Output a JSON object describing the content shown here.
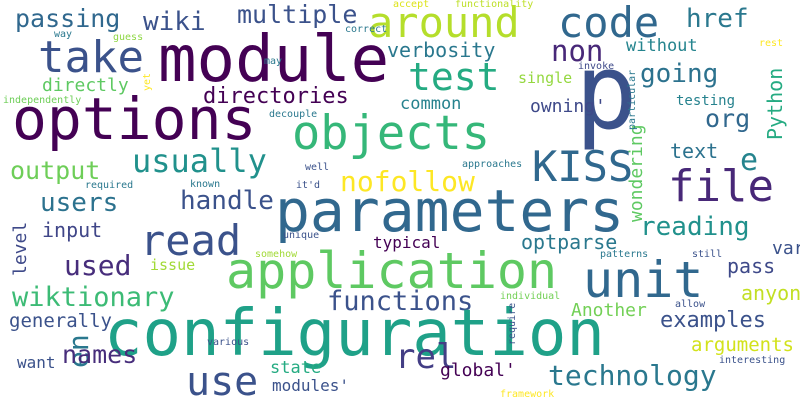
{
  "words": [
    {
      "text": "passing",
      "color": "#30688e"
    },
    {
      "text": "wiki",
      "color": "#3b528b"
    },
    {
      "text": "multiple",
      "color": "#3b528b"
    },
    {
      "text": "around",
      "color": "#b5de2b"
    },
    {
      "text": "code",
      "color": "#31688e"
    },
    {
      "text": "href",
      "color": "#2a788e"
    },
    {
      "text": "take",
      "color": "#3b528b"
    },
    {
      "text": "module",
      "color": "#440154"
    },
    {
      "text": "test",
      "color": "#25ab82"
    },
    {
      "text": "non",
      "color": "#482878"
    },
    {
      "text": "verbosity",
      "color": "#2a788e"
    },
    {
      "text": "going",
      "color": "#2c728e"
    },
    {
      "text": "without",
      "color": "#25848e"
    },
    {
      "text": "Python",
      "color": "#25ab82"
    },
    {
      "text": "p",
      "color": "#3b528b"
    },
    {
      "text": "directly",
      "color": "#5ec962"
    },
    {
      "text": "directories",
      "color": "#440154"
    },
    {
      "text": "single",
      "color": "#95d840"
    },
    {
      "text": "testing",
      "color": "#26828e"
    },
    {
      "text": "common",
      "color": "#26828e"
    },
    {
      "text": "owning'",
      "color": "#3e4989"
    },
    {
      "text": "org",
      "color": "#31688e"
    },
    {
      "text": "options",
      "color": "#440154"
    },
    {
      "text": "objects",
      "color": "#35b779"
    },
    {
      "text": "usually",
      "color": "#21918c"
    },
    {
      "text": "KISS",
      "color": "#30688e"
    },
    {
      "text": "e",
      "color": "#25848e"
    },
    {
      "text": "variables",
      "color": "#3b528b"
    },
    {
      "text": "output",
      "color": "#6ece58"
    },
    {
      "text": "nofollow",
      "color": "#fde725"
    },
    {
      "text": "file",
      "color": "#482878"
    },
    {
      "text": "text",
      "color": "#2c728e"
    },
    {
      "text": "wondering",
      "color": "#5ec962"
    },
    {
      "text": "users",
      "color": "#2c728e"
    },
    {
      "text": "handle",
      "color": "#3b528b"
    },
    {
      "text": "parameters",
      "color": "#31688e"
    },
    {
      "text": "reading",
      "color": "#21918c"
    },
    {
      "text": "input",
      "color": "#404688"
    },
    {
      "text": "read",
      "color": "#3b528b"
    },
    {
      "text": "typical",
      "color": "#440154"
    },
    {
      "text": "optparse",
      "color": "#2a788e"
    },
    {
      "text": "level",
      "color": "#3e4989"
    },
    {
      "text": "used",
      "color": "#472d7b"
    },
    {
      "text": "application",
      "color": "#5ec962"
    },
    {
      "text": "unit",
      "color": "#31688e"
    },
    {
      "text": "pass",
      "color": "#3e4989"
    },
    {
      "text": "issue",
      "color": "#a2da37"
    },
    {
      "text": "wiktionary",
      "color": "#3cbb75"
    },
    {
      "text": "functions",
      "color": "#3b528b"
    },
    {
      "text": "anyone",
      "color": "#c2df23"
    },
    {
      "text": "generally",
      "color": "#3b528b"
    },
    {
      "text": "en",
      "color": "#2a788e"
    },
    {
      "text": "Another",
      "color": "#73d056"
    },
    {
      "text": "configuration",
      "color": "#1fa188"
    },
    {
      "text": "examples",
      "color": "#3b528b"
    },
    {
      "text": "arguments",
      "color": "#d2e21b"
    },
    {
      "text": "names",
      "color": "#472d7b"
    },
    {
      "text": "use",
      "color": "#3b528b"
    },
    {
      "text": "state",
      "color": "#25ab82"
    },
    {
      "text": "rel",
      "color": "#433e85"
    },
    {
      "text": "global'",
      "color": "#440154"
    },
    {
      "text": "technology",
      "color": "#2a788e"
    },
    {
      "text": "want",
      "color": "#3b528b"
    },
    {
      "text": "modules'",
      "color": "#3b528b"
    },
    {
      "text": "guess",
      "color": "#8fd744"
    },
    {
      "text": "accept",
      "color": "#dde318"
    },
    {
      "text": "functionality",
      "color": "#bddf26"
    },
    {
      "text": "correct",
      "color": "#2a788e"
    },
    {
      "text": "way",
      "color": "#2a788e"
    },
    {
      "text": "may",
      "color": "#2a788e"
    },
    {
      "text": "invoke",
      "color": "#3e4989"
    },
    {
      "text": "rest",
      "color": "#fde725"
    },
    {
      "text": "yet",
      "color": "#fde725"
    },
    {
      "text": "independently",
      "color": "#6ece58"
    },
    {
      "text": "decouple",
      "color": "#2a788e"
    },
    {
      "text": "particular",
      "color": "#2a788e"
    },
    {
      "text": "well",
      "color": "#3b528b"
    },
    {
      "text": "it'd",
      "color": "#3b528b"
    },
    {
      "text": "known",
      "color": "#2a788e"
    },
    {
      "text": "required",
      "color": "#2a788e"
    },
    {
      "text": "approaches",
      "color": "#2a788e"
    },
    {
      "text": "unique",
      "color": "#3b528b"
    },
    {
      "text": "somehow",
      "color": "#a2da37"
    },
    {
      "text": "patterns",
      "color": "#2a788e"
    },
    {
      "text": "still",
      "color": "#3b528b"
    },
    {
      "text": "individual",
      "color": "#73d056"
    },
    {
      "text": "require",
      "color": "#3b528b"
    },
    {
      "text": "allow",
      "color": "#3b528b"
    },
    {
      "text": "various",
      "color": "#3b528b"
    },
    {
      "text": "framework",
      "color": "#fde725"
    },
    {
      "text": "interesting",
      "color": "#3b528b"
    }
  ]
}
